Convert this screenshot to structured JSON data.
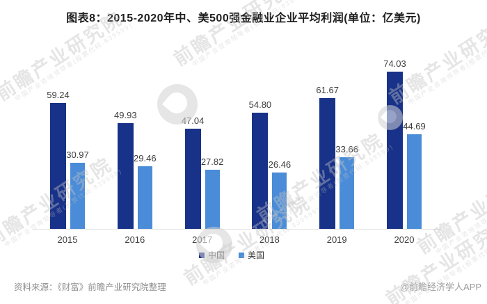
{
  "title": "图表8：2015-2020年中、美500强金融业企业平均利润(单位：亿美元)",
  "chart_data": {
    "type": "bar",
    "categories": [
      "2015",
      "2016",
      "2017",
      "2018",
      "2019",
      "2020"
    ],
    "series": [
      {
        "name": "中国",
        "color": "#183289",
        "values": [
          59.24,
          49.93,
          47.04,
          54.8,
          61.67,
          74.03
        ]
      },
      {
        "name": "美国",
        "color": "#4a8cd8",
        "values": [
          30.97,
          29.46,
          27.82,
          26.46,
          33.66,
          44.69
        ]
      }
    ],
    "ylim": [
      0,
      80
    ],
    "grid": false,
    "legend_position": "bottom",
    "value_labels": true,
    "value_label_decimals": 2
  },
  "footer": {
    "source": "资料来源：《财富》前瞻产业研究院整理",
    "credit": "@前瞻经济学人APP"
  },
  "watermark": {
    "text": "前瞻产业研究院",
    "subtext": "中国产业咨询领导者(股票代码:839599)"
  },
  "colors": {
    "china_bar": "#183289",
    "usa_bar": "#4a8cd8",
    "axis_line": "#e2e2e2",
    "label_text": "#3d3d3d",
    "footer_text": "#8f8f8f",
    "watermark": "#c3c3c3"
  }
}
